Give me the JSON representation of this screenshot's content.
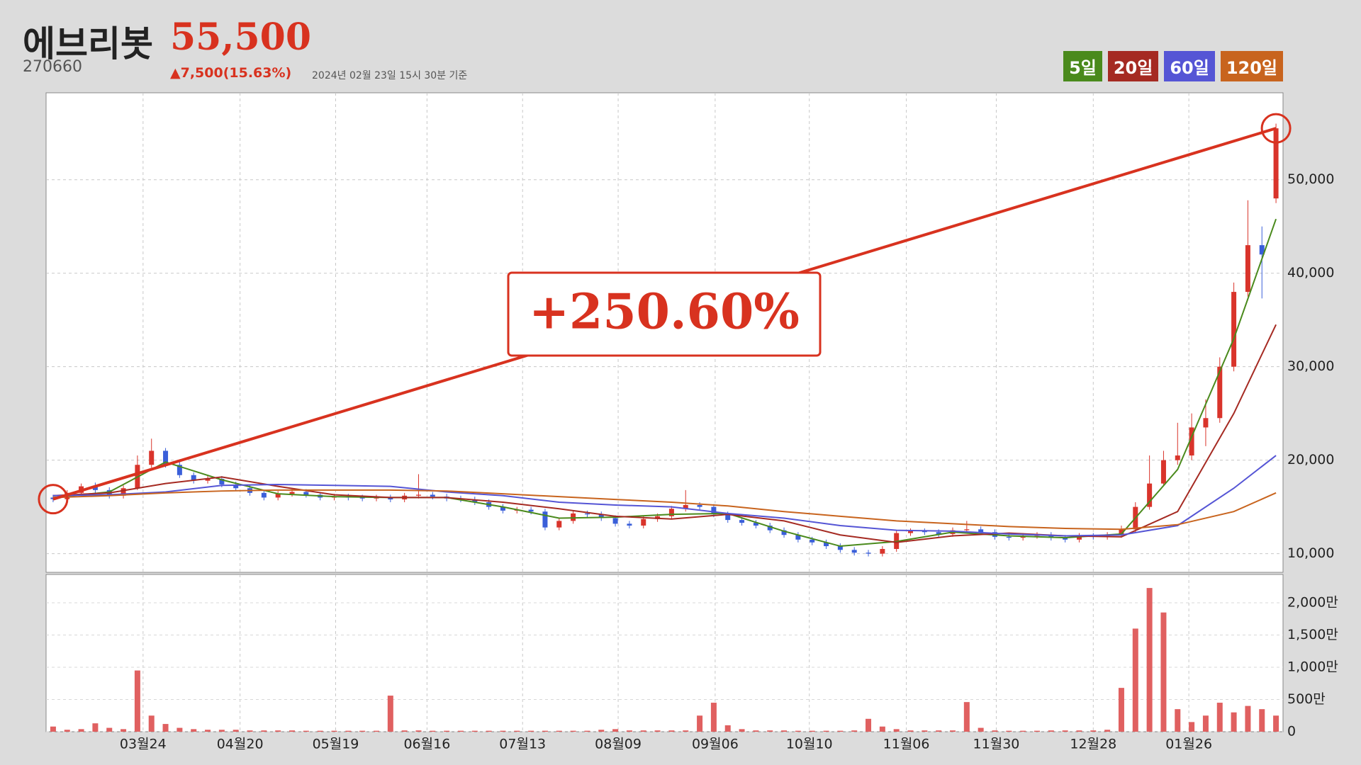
{
  "header": {
    "name": "에브리봇",
    "price": "55,500",
    "code": "270660",
    "change": "▲7,500(15.63%)",
    "timestamp": "2024년 02월 23일 15시 30분 기준"
  },
  "chart_data": {
    "type": "candlestick",
    "annotation": "+250.60%",
    "up_color": "#d9342b",
    "down_color": "#3a5fd9",
    "volume_color": "#e06060",
    "xlim": [
      -0.5,
      87.5
    ],
    "xticks": [
      {
        "value": 6.4,
        "label": "03월24"
      },
      {
        "value": 13.3,
        "label": "04월20"
      },
      {
        "value": 20.1,
        "label": "05월19"
      },
      {
        "value": 26.6,
        "label": "06월16"
      },
      {
        "value": 33.4,
        "label": "07월13"
      },
      {
        "value": 40.2,
        "label": "08월09"
      },
      {
        "value": 47.1,
        "label": "09월06"
      },
      {
        "value": 53.8,
        "label": "10월10"
      },
      {
        "value": 60.7,
        "label": "11월06"
      },
      {
        "value": 67.1,
        "label": "11월30"
      },
      {
        "value": 74.0,
        "label": "12월28"
      },
      {
        "value": 80.8,
        "label": "01월26"
      }
    ],
    "ylim": [
      8000,
      59300
    ],
    "yticks": [
      {
        "value": 10000,
        "label": "10,000"
      },
      {
        "value": 20000,
        "label": "20,000"
      },
      {
        "value": 30000,
        "label": "30,000"
      },
      {
        "value": 40000,
        "label": "40,000"
      },
      {
        "value": 50000,
        "label": "50,000"
      }
    ],
    "volume_ylim": [
      0,
      2440
    ],
    "volume_yticks": [
      0,
      {
        "value": 500,
        "label": "500만"
      },
      {
        "value": 1000,
        "label": "1,000만"
      },
      {
        "value": 1500,
        "label": "1,500만"
      },
      {
        "value": 2000,
        "label": "2,000만"
      }
    ],
    "grid": true,
    "candles": {
      "open": [
        16000,
        15830,
        16500,
        17200,
        16800,
        16200,
        17000,
        19500,
        21000,
        19500,
        18400,
        17800,
        18000,
        17400,
        17000,
        16500,
        16000,
        16400,
        16600,
        16300,
        16000,
        16100,
        16000,
        15900,
        16000,
        15800,
        16200,
        16300,
        16100,
        15900,
        15800,
        15500,
        15000,
        14600,
        14700,
        14500,
        12800,
        13500,
        14300,
        14200,
        13800,
        13200,
        13000,
        13700,
        14000,
        14800,
        15200,
        15000,
        14200,
        13600,
        13300,
        13000,
        12500,
        12000,
        11500,
        11200,
        10800,
        10400,
        10100,
        10000,
        10500,
        12200,
        12400,
        12300,
        12100,
        12500,
        12600,
        12300,
        11800,
        11700,
        11900,
        12000,
        11700,
        11500,
        11900,
        11800,
        12000,
        12600,
        15000,
        17500,
        20000,
        20500,
        23500,
        24500,
        30000,
        38000,
        43000,
        48000
      ],
      "high": [
        16300,
        16800,
        17500,
        17600,
        17100,
        17300,
        20500,
        22300,
        21300,
        19800,
        18700,
        18300,
        18300,
        17700,
        17300,
        16800,
        16700,
        16900,
        16900,
        16600,
        16400,
        16400,
        16300,
        16300,
        16300,
        16500,
        18500,
        16600,
        16400,
        16200,
        16100,
        15800,
        15300,
        15000,
        15000,
        14800,
        13800,
        14600,
        14600,
        14500,
        14100,
        13500,
        14000,
        14300,
        15100,
        16800,
        15500,
        15300,
        14500,
        13900,
        13600,
        13300,
        12800,
        12300,
        11800,
        11500,
        11100,
        10700,
        10400,
        10800,
        12500,
        12700,
        12700,
        12600,
        12800,
        13500,
        12900,
        12600,
        12100,
        12200,
        12300,
        12300,
        12000,
        12200,
        12200,
        12300,
        13000,
        15500,
        20500,
        21000,
        24000,
        25000,
        26500,
        31000,
        39000,
        47800,
        45000,
        56000
      ],
      "low": [
        15500,
        15500,
        16200,
        16500,
        15900,
        15900,
        16800,
        19200,
        19200,
        18100,
        17500,
        17500,
        17100,
        16700,
        16200,
        15700,
        15700,
        16100,
        16000,
        15700,
        15700,
        15700,
        15600,
        15600,
        15500,
        15500,
        15900,
        15800,
        15600,
        15500,
        15200,
        14700,
        14300,
        14300,
        14200,
        12500,
        12500,
        13200,
        13900,
        13500,
        12900,
        12700,
        12700,
        13400,
        13700,
        14500,
        14700,
        13900,
        13300,
        13000,
        12700,
        12200,
        11700,
        11200,
        10900,
        10500,
        10100,
        9800,
        9700,
        9700,
        10200,
        11900,
        12000,
        11800,
        11800,
        12200,
        12000,
        11500,
        11400,
        11400,
        11600,
        11400,
        11200,
        11200,
        11500,
        11500,
        11700,
        12300,
        14700,
        17200,
        19500,
        20000,
        21500,
        24000,
        29500,
        37500,
        37300,
        47500
      ],
      "close": [
        15830,
        16500,
        17200,
        16800,
        16200,
        17000,
        19500,
        21000,
        19500,
        18400,
        17800,
        18000,
        17400,
        17000,
        16500,
        16000,
        16400,
        16600,
        16300,
        16000,
        16100,
        16000,
        15900,
        16000,
        15800,
        16200,
        16300,
        16100,
        15900,
        15800,
        15500,
        15000,
        14600,
        14700,
        14500,
        12800,
        13500,
        14300,
        14200,
        13800,
        13200,
        13000,
        13700,
        14000,
        14800,
        15200,
        15000,
        14200,
        13600,
        13300,
        13000,
        12500,
        12000,
        11500,
        11200,
        10800,
        10400,
        10100,
        10000,
        10500,
        12200,
        12400,
        12300,
        12100,
        12500,
        12600,
        12300,
        11800,
        11700,
        11900,
        12000,
        11700,
        11500,
        11900,
        11800,
        12000,
        12600,
        15000,
        17500,
        20000,
        20500,
        23500,
        24500,
        30000,
        38000,
        43000,
        42000,
        55500
      ]
    },
    "volume": [
      80,
      30,
      40,
      130,
      60,
      40,
      950,
      250,
      120,
      60,
      40,
      30,
      30,
      30,
      20,
      20,
      20,
      20,
      15,
      15,
      15,
      15,
      15,
      15,
      560,
      20,
      20,
      15,
      15,
      15,
      15,
      15,
      15,
      15,
      15,
      15,
      15,
      15,
      15,
      30,
      40,
      20,
      20,
      20,
      20,
      20,
      250,
      450,
      100,
      40,
      20,
      20,
      20,
      15,
      15,
      15,
      15,
      20,
      200,
      80,
      40,
      20,
      20,
      20,
      20,
      460,
      60,
      20,
      15,
      15,
      15,
      20,
      20,
      20,
      20,
      30,
      680,
      1600,
      2230,
      1850,
      350,
      150,
      250,
      450,
      300,
      400,
      350,
      250
    ],
    "series": [
      {
        "name": "5일",
        "color": "#4a8a1c",
        "x": [
          0,
          4,
          8,
          12,
          16,
          20,
          24,
          28,
          32,
          36,
          40,
          44,
          48,
          52,
          56,
          60,
          64,
          68,
          72,
          76,
          80,
          84,
          87
        ],
        "values": [
          16000,
          16600,
          19800,
          17900,
          16400,
          16100,
          16000,
          16000,
          15000,
          13800,
          13900,
          14200,
          14300,
          12400,
          10800,
          11300,
          12300,
          11900,
          11700,
          12100,
          19000,
          33000,
          45800
        ]
      },
      {
        "name": "20일",
        "color": "#a52a22",
        "x": [
          0,
          4,
          8,
          12,
          16,
          20,
          24,
          28,
          32,
          36,
          40,
          44,
          48,
          52,
          56,
          60,
          64,
          68,
          72,
          76,
          80,
          84,
          87
        ],
        "values": [
          16200,
          16500,
          17500,
          18200,
          17200,
          16300,
          16000,
          16000,
          15500,
          14800,
          14000,
          13700,
          14200,
          13500,
          12000,
          11200,
          11900,
          12200,
          11900,
          11800,
          14500,
          25000,
          34500
        ]
      },
      {
        "name": "60일",
        "color": "#5555d5",
        "x": [
          0,
          4,
          8,
          12,
          16,
          20,
          24,
          28,
          32,
          36,
          40,
          44,
          48,
          52,
          56,
          60,
          64,
          68,
          72,
          76,
          80,
          84,
          87
        ],
        "values": [
          16200,
          16300,
          16600,
          17300,
          17400,
          17300,
          17200,
          16600,
          16200,
          15500,
          15200,
          15000,
          14300,
          13800,
          13000,
          12500,
          12400,
          12100,
          11900,
          12000,
          13000,
          17000,
          20500
        ]
      },
      {
        "name": "120일",
        "color": "#c8641e",
        "x": [
          0,
          4,
          8,
          12,
          16,
          20,
          24,
          28,
          32,
          36,
          40,
          44,
          48,
          52,
          56,
          60,
          64,
          68,
          72,
          76,
          80,
          84,
          87
        ],
        "values": [
          16000,
          16200,
          16500,
          16700,
          16800,
          16800,
          16800,
          16700,
          16400,
          16100,
          15800,
          15500,
          15100,
          14500,
          14000,
          13500,
          13200,
          12900,
          12700,
          12600,
          13100,
          14500,
          16500
        ]
      }
    ]
  }
}
